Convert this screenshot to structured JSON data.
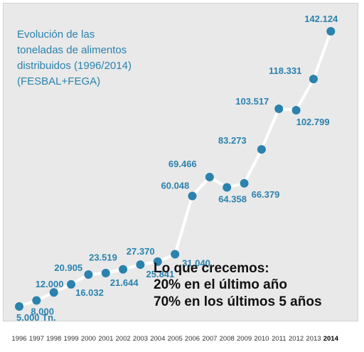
{
  "chart_data": {
    "type": "line",
    "title_lines": [
      "Evolución de las",
      "toneladas de alimentos",
      "distribuidos (1996/2014)",
      "(FESBAL+FEGA)"
    ],
    "x": [
      "1996",
      "1997",
      "1998",
      "1999",
      "2000",
      "2001",
      "2002",
      "2003",
      "2004",
      "2005",
      "2006",
      "2007",
      "2008",
      "2009",
      "2010",
      "2011",
      "2012",
      "2013",
      "2014"
    ],
    "values": [
      5000,
      8000,
      12000,
      16032,
      20905,
      21644,
      23519,
      25841,
      27370,
      31040,
      60048,
      69466,
      64358,
      66379,
      83273,
      103517,
      102799,
      118331,
      142124
    ],
    "data_labels": [
      "5.000 Tn.",
      "8.000",
      "12.000",
      "16.032",
      "20.905",
      "21.644",
      "23.519",
      "25.841",
      "27.370",
      "31.040",
      "60.048",
      "69.466",
      "64.358",
      "66.379",
      "83.273",
      "103.517",
      "102.799",
      "118.331",
      "142.124"
    ],
    "highlighted_x": "2014",
    "note_lines": [
      "Lo que crecemos:",
      "20% en el último año",
      "70% en los últimos 5 años"
    ],
    "colors": {
      "background": "#e9e9e9",
      "line": "#ffffff",
      "point": "#2a82ad",
      "label": "#2a82ad",
      "text": "#111111"
    }
  }
}
